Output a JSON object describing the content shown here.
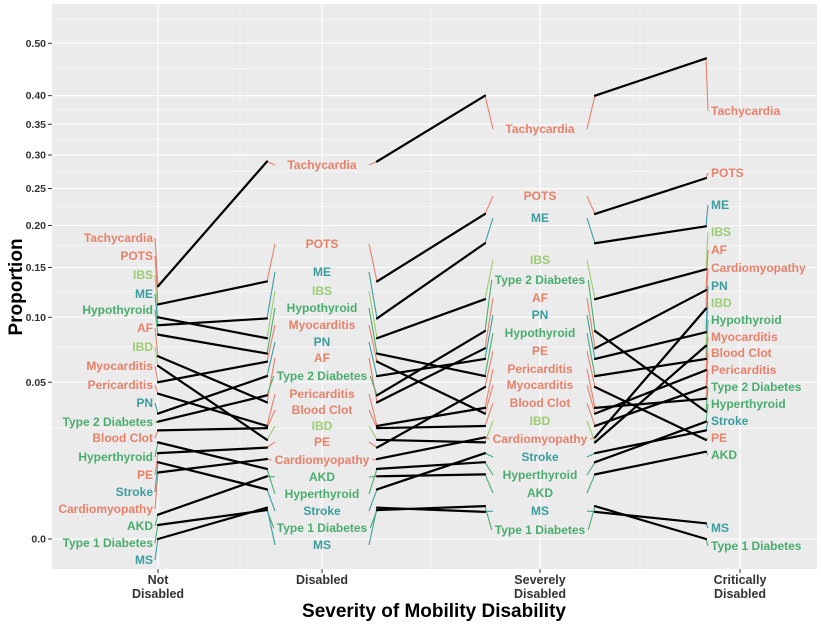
{
  "chart_data": {
    "type": "line",
    "title": "",
    "xlabel": "Severity of Mobility Disability",
    "ylabel": "Proportion",
    "categories": [
      "Not\nDisabled",
      "Disabled",
      "Severely\nDisabled",
      "Critically\nDisabled"
    ],
    "y_scale": "sqrt",
    "yticks": [
      "0.0",
      "0.05",
      "0.10",
      "0.15",
      "0.20",
      "0.25",
      "0.30",
      "0.35",
      "0.40",
      "0.50",
      "0.60",
      "0.70",
      "0.80",
      "0.90",
      "1.00"
    ],
    "grid": true,
    "legend": "none",
    "colors": {
      "cardiac": "#e8806a",
      "autoimmune": "#9ccc73",
      "neuro": "#3a9ea0",
      "metabolic": "#4aad6e",
      "line": "#000000",
      "panel": "#ebebeb",
      "grid": "#ffffff"
    },
    "series": [
      {
        "name": "Tachycardia",
        "group": "cardiac",
        "values": [
          0.13,
          0.29,
          0.4,
          0.47
        ]
      },
      {
        "name": "POTS",
        "group": "cardiac",
        "values": [
          0.112,
          0.135,
          0.215,
          0.265
        ]
      },
      {
        "name": "IBS",
        "group": "autoimmune",
        "values": [
          0.1,
          0.082,
          0.117,
          0.148
        ]
      },
      {
        "name": "ME",
        "group": "neuro",
        "values": [
          0.093,
          0.099,
          0.178,
          0.199
        ]
      },
      {
        "name": "Hypothyroid",
        "group": "metabolic",
        "values": [
          0.085,
          0.07,
          0.054,
          0.066
        ]
      },
      {
        "name": "AF",
        "group": "cardiac",
        "values": [
          0.068,
          0.038,
          0.074,
          0.126
        ]
      },
      {
        "name": "IBD",
        "group": "autoimmune",
        "values": [
          0.061,
          0.02,
          0.019,
          0.076
        ]
      },
      {
        "name": "Myocarditis",
        "group": "cardiac",
        "values": [
          0.05,
          0.064,
          0.032,
          0.058
        ]
      },
      {
        "name": "Pericarditis",
        "group": "cardiac",
        "values": [
          0.043,
          0.026,
          0.035,
          0.04
        ]
      },
      {
        "name": "PN",
        "group": "neuro",
        "values": [
          0.032,
          0.054,
          0.066,
          0.087
        ]
      },
      {
        "name": "Type 2 Diabetes",
        "group": "metabolic",
        "values": [
          0.028,
          0.042,
          0.088,
          0.033
        ]
      },
      {
        "name": "Blood Clot",
        "group": "cardiac",
        "values": [
          0.024,
          0.025,
          0.026,
          0.047
        ]
      },
      {
        "name": "Hyperthyroid",
        "group": "metabolic",
        "values": [
          0.019,
          0.01,
          0.012,
          0.028
        ]
      },
      {
        "name": "PE",
        "group": "cardiac",
        "values": [
          0.015,
          0.017,
          0.047,
          0.02
        ]
      },
      {
        "name": "Stroke",
        "group": "neuro",
        "values": [
          0.012,
          0.005,
          0.015,
          0.024
        ]
      },
      {
        "name": "Cardiomyopathy",
        "group": "cardiac",
        "values": [
          0.009,
          0.013,
          0.021,
          0.108
        ]
      },
      {
        "name": "AKD",
        "group": "metabolic",
        "values": [
          0.0012,
          0.008,
          0.0085,
          0.0155
        ]
      },
      {
        "name": "Type 1 Diabetes",
        "group": "metabolic",
        "values": [
          0.0004,
          0.0017,
          0.0022,
          0.0
        ]
      },
      {
        "name": "MS",
        "group": "neuro",
        "values": [
          0.0,
          0.002,
          0.0015,
          0.0005
        ]
      }
    ]
  }
}
